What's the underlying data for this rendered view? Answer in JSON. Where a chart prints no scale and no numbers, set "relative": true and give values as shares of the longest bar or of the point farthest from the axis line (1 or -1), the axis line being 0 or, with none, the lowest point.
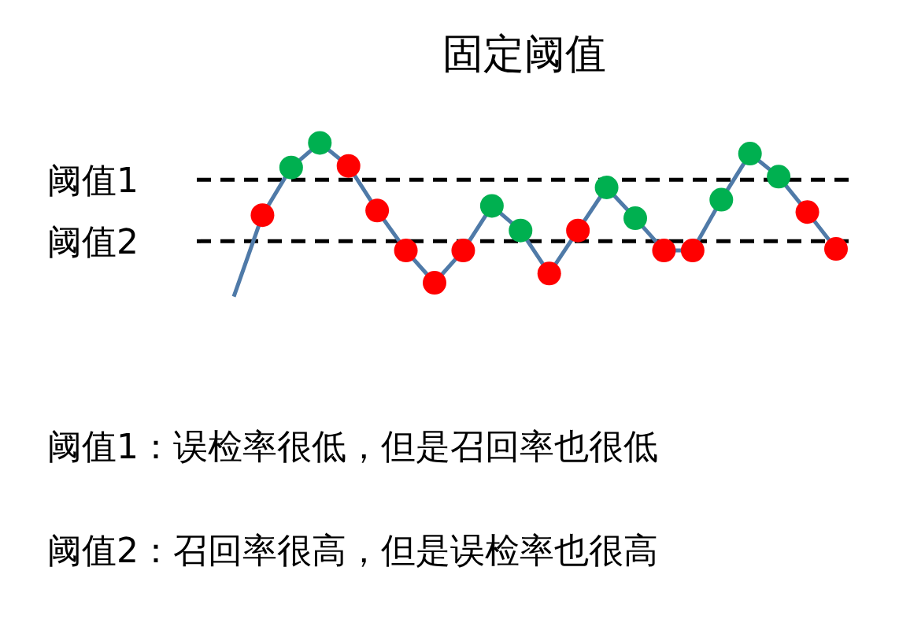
{
  "chart_data": {
    "type": "line",
    "title": "固定阈值",
    "relative": true,
    "marker": "circle",
    "line_style": "solid",
    "categories": [
      null,
      null,
      null,
      null,
      null,
      null,
      null,
      null,
      null,
      null,
      null,
      null,
      null,
      null,
      null,
      null,
      null,
      null,
      null,
      null,
      null,
      null
    ],
    "series": [
      {
        "color": "#4f7aa8",
        "values": [
          0,
          0.53,
          0.84,
          1,
          0.85,
          0.56,
          0.3,
          0.09,
          0.3,
          0.59,
          0.43,
          0.15,
          0.43,
          0.71,
          0.51,
          0.3,
          0.3,
          0.63,
          0.93,
          0.78,
          0.55,
          0.31
        ],
        "colors": [
          null,
          "#ff0000",
          "#00b050",
          "#00b050",
          "#ff0000",
          "#ff0000",
          "#ff0000",
          "#ff0000",
          "#ff0000",
          "#00b050",
          "#00b050",
          "#ff0000",
          "#ff0000",
          "#00b050",
          "#00b050",
          "#ff0000",
          "#ff0000",
          "#00b050",
          "#00b050",
          "#00b050",
          "#ff0000",
          "#ff0000"
        ]
      }
    ],
    "ref_lines": [
      {
        "axis": "y",
        "value": 0.76,
        "label": "阈值1",
        "color": "#000000",
        "line_style": "dashed"
      },
      {
        "axis": "y",
        "value": 0.36,
        "label": "阈值2",
        "color": "#000000",
        "line_style": "dashed"
      }
    ],
    "annotations": [
      "阈值1：误检率很低，但是召回率也很低",
      "阈值2：召回率很高，但是误检率也很高"
    ]
  }
}
